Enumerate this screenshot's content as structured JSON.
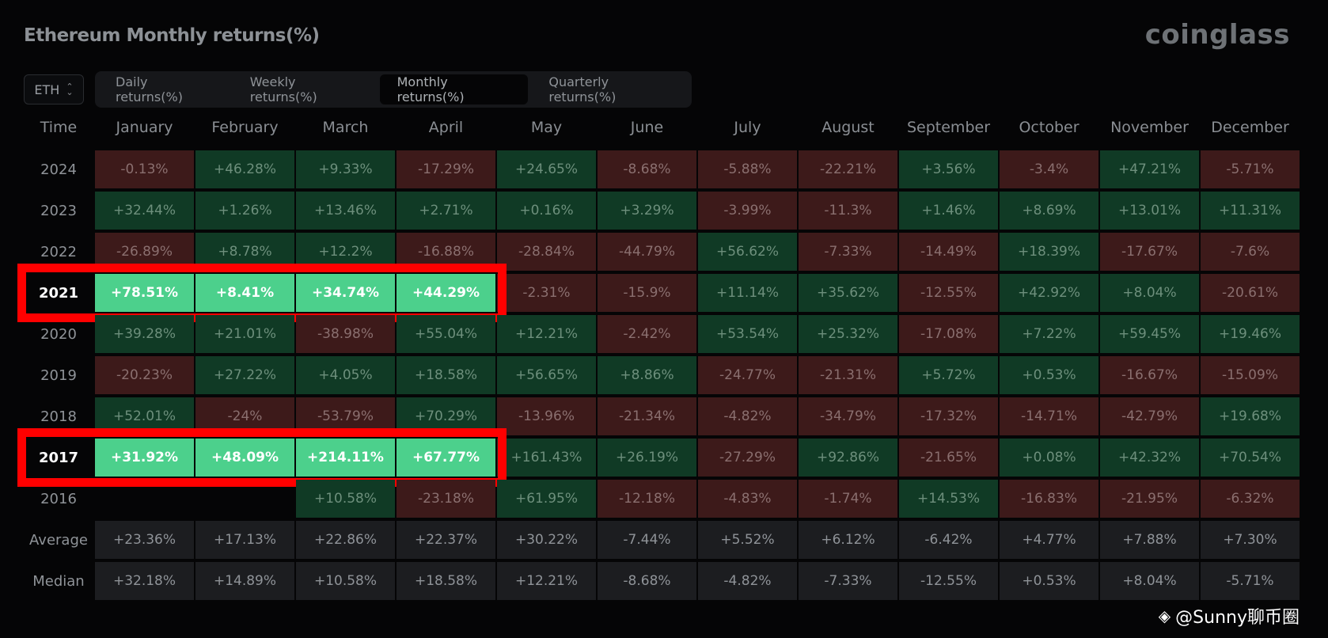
{
  "title": "Ethereum Monthly returns(%)",
  "brand": "coinglass",
  "asset_select": {
    "value": "ETH",
    "icon": "updown-chevron-icon"
  },
  "tabs": [
    {
      "label": "Daily returns(%)",
      "active": false
    },
    {
      "label": "Weekly returns(%)",
      "active": false
    },
    {
      "label": "Monthly returns(%)",
      "active": true
    },
    {
      "label": "Quarterly returns(%)",
      "active": false
    }
  ],
  "table": {
    "time_header": "Time",
    "months": [
      "January",
      "February",
      "March",
      "April",
      "May",
      "June",
      "July",
      "August",
      "September",
      "October",
      "November",
      "December"
    ],
    "rows": [
      {
        "label": "2024",
        "values": [
          "-0.13%",
          "+46.28%",
          "+9.33%",
          "-17.29%",
          "+24.65%",
          "-8.68%",
          "-5.88%",
          "-22.21%",
          "+3.56%",
          "-3.4%",
          "+47.21%",
          "-5.71%"
        ]
      },
      {
        "label": "2023",
        "values": [
          "+32.44%",
          "+1.26%",
          "+13.46%",
          "+2.71%",
          "+0.16%",
          "+3.29%",
          "-3.99%",
          "-11.3%",
          "+1.46%",
          "+8.69%",
          "+13.01%",
          "+11.31%"
        ]
      },
      {
        "label": "2022",
        "values": [
          "-26.89%",
          "+8.78%",
          "+12.2%",
          "-16.88%",
          "-28.84%",
          "-44.79%",
          "+56.62%",
          "-7.33%",
          "-14.49%",
          "+18.39%",
          "-17.67%",
          "-7.6%"
        ]
      },
      {
        "label": "2021",
        "values": [
          "+78.51%",
          "+8.41%",
          "+34.74%",
          "+44.29%",
          "-2.31%",
          "-15.9%",
          "+11.14%",
          "+35.62%",
          "-12.55%",
          "+42.92%",
          "+8.04%",
          "-20.61%"
        ]
      },
      {
        "label": "2020",
        "values": [
          "+39.28%",
          "+21.01%",
          "-38.98%",
          "+55.04%",
          "+12.21%",
          "-2.42%",
          "+53.54%",
          "+25.32%",
          "-17.08%",
          "+7.22%",
          "+59.45%",
          "+19.46%"
        ]
      },
      {
        "label": "2019",
        "values": [
          "-20.23%",
          "+27.22%",
          "+4.05%",
          "+18.58%",
          "+56.65%",
          "+8.86%",
          "-24.77%",
          "-21.31%",
          "+5.72%",
          "+0.53%",
          "-16.67%",
          "-15.09%"
        ]
      },
      {
        "label": "2018",
        "values": [
          "+52.01%",
          "-24%",
          "-53.79%",
          "+70.29%",
          "-13.96%",
          "-21.34%",
          "-4.82%",
          "-34.79%",
          "-17.32%",
          "-14.71%",
          "-42.79%",
          "+19.68%"
        ]
      },
      {
        "label": "2017",
        "values": [
          "+31.92%",
          "+48.09%",
          "+214.11%",
          "+67.77%",
          "+161.43%",
          "+26.19%",
          "-27.29%",
          "+92.86%",
          "-21.65%",
          "+0.08%",
          "+42.32%",
          "+70.54%"
        ]
      },
      {
        "label": "2016",
        "values": [
          "",
          "",
          "+10.58%",
          "-23.18%",
          "+61.95%",
          "-12.18%",
          "-4.83%",
          "-1.74%",
          "+14.53%",
          "-16.83%",
          "-21.95%",
          "-6.32%"
        ]
      }
    ],
    "stats": [
      {
        "label": "Average",
        "values": [
          "+23.36%",
          "+17.13%",
          "+22.86%",
          "+22.37%",
          "+30.22%",
          "-7.44%",
          "+5.52%",
          "+6.12%",
          "-6.42%",
          "+4.77%",
          "+7.88%",
          "+7.30%"
        ]
      },
      {
        "label": "Median",
        "values": [
          "+32.18%",
          "+14.89%",
          "+10.58%",
          "+18.58%",
          "+12.21%",
          "-8.68%",
          "-4.82%",
          "-7.33%",
          "-12.55%",
          "+0.53%",
          "+8.04%",
          "-5.71%"
        ]
      }
    ],
    "highlighted_rows": [
      "2021",
      "2017"
    ],
    "highlighted_month_count": 4
  },
  "colors": {
    "positive": "#103a25",
    "negative": "#3d1a1a",
    "highlight_fill": "#4cd08c",
    "highlight_border": "#ff0000"
  },
  "watermark": "@Sunny聊币圈"
}
